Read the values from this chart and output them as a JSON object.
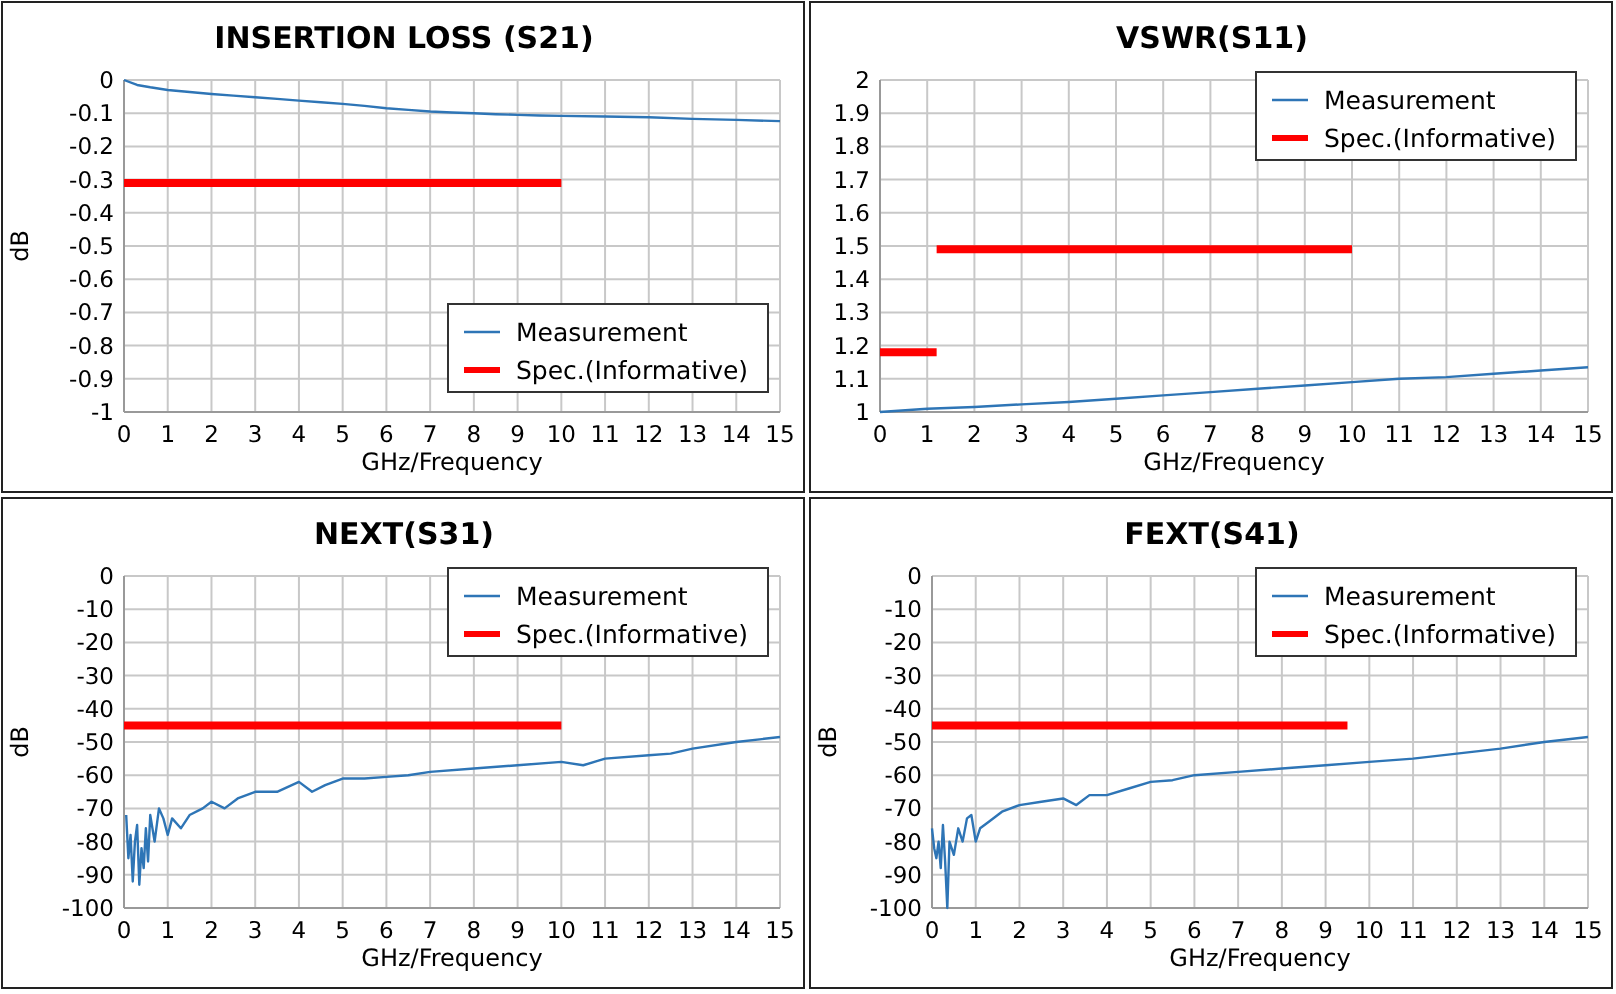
{
  "chart_data": [
    {
      "type": "line",
      "title": "INSERTION LOSS (S21)",
      "xlabel": "GHz/Frequency",
      "ylabel": "dB",
      "xlim": [
        0,
        15
      ],
      "xticks": [
        0,
        1,
        2,
        3,
        4,
        5,
        6,
        7,
        8,
        9,
        10,
        11,
        12,
        13,
        14,
        15
      ],
      "ylim": [
        -1,
        0
      ],
      "yticks": [
        0,
        -0.1,
        -0.2,
        -0.3,
        -0.4,
        -0.5,
        -0.6,
        -0.7,
        -0.8,
        -0.9,
        -1
      ],
      "grid": true,
      "legend": "bottom right",
      "series": [
        {
          "name": "Measurement",
          "color": "#2e75b6",
          "x": [
            0,
            0.3,
            0.6,
            1,
            1.5,
            2,
            2.5,
            3,
            3.5,
            4,
            4.5,
            5,
            5.5,
            6,
            6.5,
            7,
            7.5,
            8,
            8.5,
            9,
            9.5,
            10,
            11,
            12,
            13,
            14,
            15
          ],
          "values": [
            0,
            -0.015,
            -0.022,
            -0.03,
            -0.036,
            -0.042,
            -0.047,
            -0.052,
            -0.057,
            -0.062,
            -0.067,
            -0.072,
            -0.078,
            -0.085,
            -0.09,
            -0.095,
            -0.098,
            -0.1,
            -0.103,
            -0.105,
            -0.107,
            -0.108,
            -0.11,
            -0.112,
            -0.117,
            -0.12,
            -0.124
          ]
        },
        {
          "name": "Spec.(Informative)",
          "color": "#ff0000",
          "x": [
            0,
            10
          ],
          "values": [
            -0.31,
            -0.31
          ]
        }
      ]
    },
    {
      "type": "line",
      "title": "VSWR(S11)",
      "xlabel": "GHz/Frequency",
      "xlim": [
        0,
        15
      ],
      "xticks": [
        0,
        1,
        2,
        3,
        4,
        5,
        6,
        7,
        8,
        9,
        10,
        11,
        12,
        13,
        14,
        15
      ],
      "ylim": [
        1,
        2
      ],
      "yticks": [
        1,
        1.1,
        1.2,
        1.3,
        1.4,
        1.5,
        1.6,
        1.7,
        1.8,
        1.9,
        2
      ],
      "grid": true,
      "legend": "top right",
      "series": [
        {
          "name": "Measurement",
          "color": "#2e75b6",
          "x": [
            0,
            1,
            2,
            3,
            4,
            5,
            6,
            7,
            8,
            9,
            10,
            11,
            12,
            13,
            14,
            15
          ],
          "values": [
            1.0,
            1.01,
            1.015,
            1.023,
            1.03,
            1.04,
            1.05,
            1.06,
            1.07,
            1.08,
            1.09,
            1.1,
            1.105,
            1.115,
            1.125,
            1.135
          ]
        },
        {
          "name": "Spec.(Informative)",
          "color": "#ff0000",
          "x": [
            1.2,
            10
          ],
          "values": [
            1.49,
            1.49
          ]
        },
        {
          "color": "#ff0000",
          "x": [
            0,
            1.2
          ],
          "values": [
            1.18,
            1.18
          ]
        }
      ]
    },
    {
      "type": "line",
      "title": "NEXT(S31)",
      "xlabel": "GHz/Frequency",
      "ylabel": "dB",
      "xlim": [
        0,
        15
      ],
      "xticks": [
        0,
        1,
        2,
        3,
        4,
        5,
        6,
        7,
        8,
        9,
        10,
        11,
        12,
        13,
        14,
        15
      ],
      "ylim": [
        -100,
        0
      ],
      "yticks": [
        0,
        -10,
        -20,
        -30,
        -40,
        -50,
        -60,
        -70,
        -80,
        -90,
        -100
      ],
      "grid": true,
      "legend": "top right",
      "series": [
        {
          "name": "Measurement",
          "color": "#2e75b6",
          "x": [
            0.05,
            0.1,
            0.15,
            0.2,
            0.25,
            0.3,
            0.35,
            0.4,
            0.45,
            0.5,
            0.55,
            0.6,
            0.7,
            0.8,
            0.9,
            1.0,
            1.1,
            1.3,
            1.5,
            1.8,
            2,
            2.3,
            2.6,
            3,
            3.5,
            4,
            4.3,
            4.6,
            5,
            5.5,
            6,
            6.5,
            7,
            8,
            9,
            10,
            10.5,
            11,
            12,
            12.5,
            13,
            14,
            15
          ],
          "values": [
            -72,
            -85,
            -78,
            -92,
            -80,
            -75,
            -93,
            -82,
            -88,
            -76,
            -86,
            -72,
            -80,
            -70,
            -73,
            -78,
            -73,
            -76,
            -72,
            -70,
            -68,
            -70,
            -67,
            -65,
            -65,
            -62,
            -65,
            -63,
            -61,
            -61,
            -60.5,
            -60,
            -59,
            -58,
            -57,
            -56,
            -57,
            -55,
            -54,
            -53.5,
            -52,
            -50,
            -48.5
          ]
        },
        {
          "name": "Spec.(Informative)",
          "color": "#ff0000",
          "x": [
            0,
            10
          ],
          "values": [
            -45,
            -45
          ]
        }
      ]
    },
    {
      "type": "line",
      "title": "FEXT(S41)",
      "xlabel": "GHz/Frequency",
      "ylabel": "dB",
      "xlim": [
        0,
        15
      ],
      "xticks": [
        0,
        1,
        2,
        3,
        4,
        5,
        6,
        7,
        8,
        9,
        10,
        11,
        12,
        13,
        14,
        15
      ],
      "ylim": [
        -100,
        0
      ],
      "yticks": [
        0,
        -10,
        -20,
        -30,
        -40,
        -50,
        -60,
        -70,
        -80,
        -90,
        -100
      ],
      "grid": true,
      "legend": "top right",
      "series": [
        {
          "name": "Measurement",
          "color": "#2e75b6",
          "x": [
            0,
            0.05,
            0.1,
            0.15,
            0.2,
            0.25,
            0.3,
            0.35,
            0.4,
            0.5,
            0.6,
            0.7,
            0.8,
            0.9,
            1,
            1.1,
            1.3,
            1.6,
            2,
            2.5,
            3,
            3.3,
            3.6,
            4,
            4.5,
            5,
            5.5,
            6,
            7,
            8,
            9,
            10,
            11,
            12,
            13,
            14,
            15
          ],
          "values": [
            -76,
            -82,
            -85,
            -80,
            -88,
            -75,
            -86,
            -100,
            -80,
            -84,
            -76,
            -80,
            -73,
            -72,
            -80,
            -76,
            -74,
            -71,
            -69,
            -68,
            -67,
            -69,
            -66,
            -66,
            -64,
            -62,
            -61.5,
            -60,
            -59,
            -58,
            -57,
            -56,
            -55,
            -53.5,
            -52,
            -50,
            -48.5
          ]
        },
        {
          "name": "Spec.(Informative)",
          "color": "#ff0000",
          "x": [
            0,
            9.5
          ],
          "values": [
            -45,
            -45
          ]
        }
      ]
    }
  ]
}
